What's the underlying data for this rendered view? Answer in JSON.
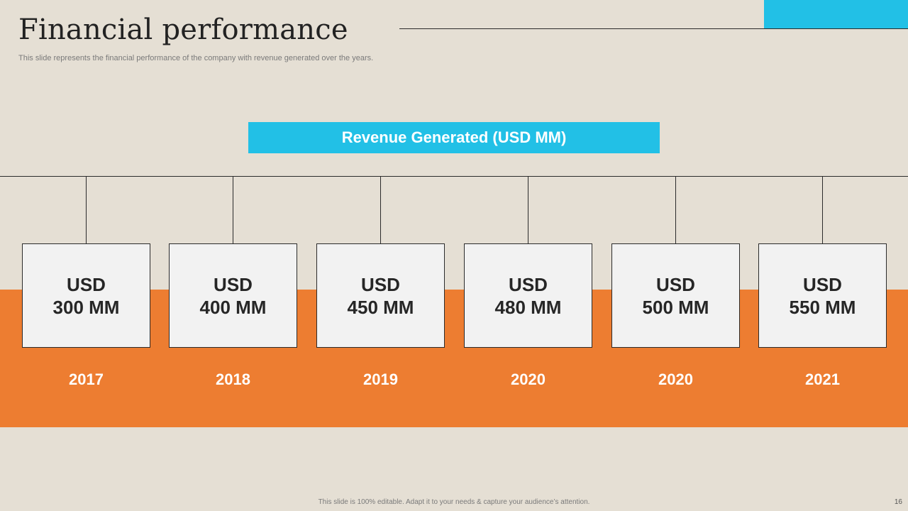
{
  "slide": {
    "title": "Financial performance",
    "subtitle": "This slide represents the financial performance of the company with revenue generated over the years.",
    "header": "Revenue Generated (USD MM)",
    "footer": "This slide is 100% editable.  Adapt it to your needs & capture your audience’s attention.",
    "page_number": "16"
  },
  "colors": {
    "background": "#E5DFD4",
    "accent_blue": "#22C0E6",
    "accent_orange": "#ED7D31",
    "card": "#F2F2F2"
  },
  "items": [
    {
      "currency": "USD",
      "amount": "300 MM",
      "year": "2017"
    },
    {
      "currency": "USD",
      "amount": "400 MM",
      "year": "2018"
    },
    {
      "currency": "USD",
      "amount": "450 MM",
      "year": "2019"
    },
    {
      "currency": "USD",
      "amount": "480 MM",
      "year": "2020"
    },
    {
      "currency": "USD",
      "amount": "500 MM",
      "year": "2020"
    },
    {
      "currency": "USD",
      "amount": "550 MM",
      "year": "2021"
    }
  ]
}
